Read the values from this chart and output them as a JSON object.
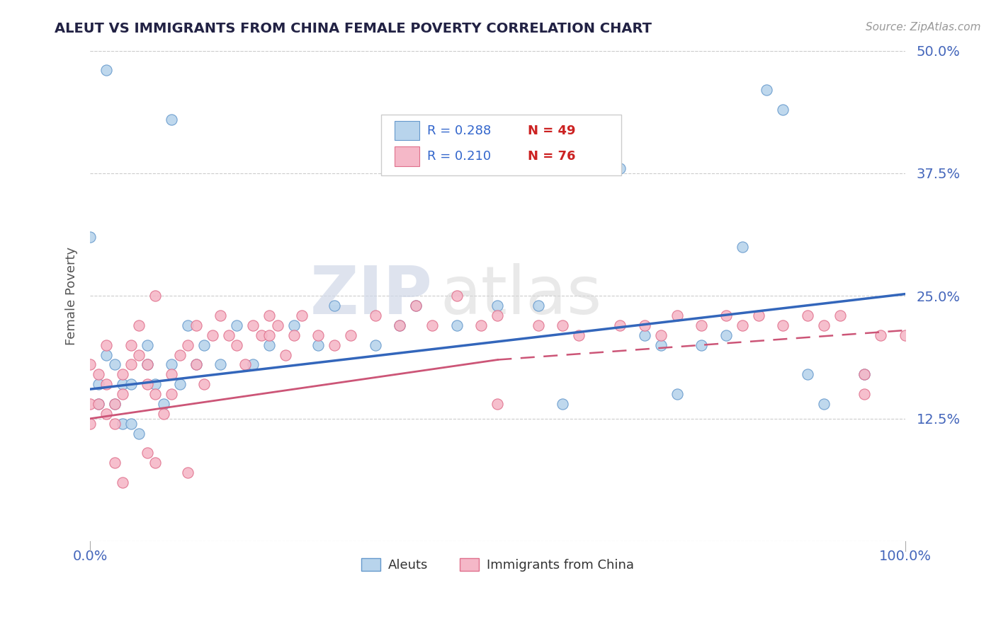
{
  "title": "ALEUT VS IMMIGRANTS FROM CHINA FEMALE POVERTY CORRELATION CHART",
  "source_text": "Source: ZipAtlas.com",
  "ylabel": "Female Poverty",
  "xmin": 0.0,
  "xmax": 1.0,
  "ymin": 0.0,
  "ymax": 0.5,
  "yticks": [
    0.0,
    0.125,
    0.25,
    0.375,
    0.5
  ],
  "ytick_labels": [
    "",
    "12.5%",
    "25.0%",
    "37.5%",
    "50.0%"
  ],
  "background_color": "#ffffff",
  "grid_color": "#cccccc",
  "watermark_zip": "ZIP",
  "watermark_atlas": "atlas",
  "series1_name": "Aleuts",
  "series1_color": "#b8d4ec",
  "series1_edge_color": "#6699cc",
  "series1_line_color": "#3366bb",
  "series2_name": "Immigrants from China",
  "series2_color": "#f5b8c8",
  "series2_edge_color": "#e0708c",
  "series2_line_color": "#cc5577",
  "legend_R_color": "#3366cc",
  "legend_N_color": "#cc2222",
  "aleuts_x": [
    0.02,
    0.1,
    0.0,
    0.01,
    0.01,
    0.02,
    0.03,
    0.03,
    0.04,
    0.04,
    0.05,
    0.05,
    0.06,
    0.07,
    0.07,
    0.08,
    0.09,
    0.1,
    0.11,
    0.12,
    0.13,
    0.14,
    0.16,
    0.18,
    0.2,
    0.22,
    0.25,
    0.28,
    0.3,
    0.35,
    0.38,
    0.4,
    0.45,
    0.5,
    0.55,
    0.58,
    0.6,
    0.65,
    0.68,
    0.7,
    0.72,
    0.75,
    0.78,
    0.8,
    0.83,
    0.85,
    0.88,
    0.9,
    0.95
  ],
  "aleuts_y": [
    0.48,
    0.43,
    0.31,
    0.16,
    0.14,
    0.19,
    0.18,
    0.14,
    0.16,
    0.12,
    0.16,
    0.12,
    0.11,
    0.2,
    0.18,
    0.16,
    0.14,
    0.18,
    0.16,
    0.22,
    0.18,
    0.2,
    0.18,
    0.22,
    0.18,
    0.2,
    0.22,
    0.2,
    0.24,
    0.2,
    0.22,
    0.24,
    0.22,
    0.24,
    0.24,
    0.14,
    0.4,
    0.38,
    0.21,
    0.2,
    0.15,
    0.2,
    0.21,
    0.3,
    0.46,
    0.44,
    0.17,
    0.14,
    0.17
  ],
  "china_x": [
    0.0,
    0.0,
    0.0,
    0.01,
    0.01,
    0.02,
    0.02,
    0.02,
    0.03,
    0.03,
    0.04,
    0.04,
    0.05,
    0.05,
    0.06,
    0.06,
    0.07,
    0.07,
    0.08,
    0.09,
    0.1,
    0.1,
    0.11,
    0.12,
    0.13,
    0.14,
    0.15,
    0.16,
    0.17,
    0.18,
    0.19,
    0.2,
    0.21,
    0.22,
    0.23,
    0.24,
    0.25,
    0.26,
    0.28,
    0.3,
    0.32,
    0.35,
    0.38,
    0.4,
    0.42,
    0.45,
    0.48,
    0.5,
    0.5,
    0.55,
    0.58,
    0.6,
    0.65,
    0.68,
    0.7,
    0.72,
    0.75,
    0.78,
    0.8,
    0.82,
    0.85,
    0.88,
    0.9,
    0.92,
    0.95,
    0.95,
    0.97,
    1.0,
    0.03,
    0.04,
    0.07,
    0.08,
    0.12,
    0.08,
    0.13,
    0.22
  ],
  "china_y": [
    0.14,
    0.12,
    0.18,
    0.17,
    0.14,
    0.2,
    0.16,
    0.13,
    0.14,
    0.12,
    0.17,
    0.15,
    0.2,
    0.18,
    0.22,
    0.19,
    0.18,
    0.16,
    0.15,
    0.13,
    0.17,
    0.15,
    0.19,
    0.2,
    0.18,
    0.16,
    0.21,
    0.23,
    0.21,
    0.2,
    0.18,
    0.22,
    0.21,
    0.23,
    0.22,
    0.19,
    0.21,
    0.23,
    0.21,
    0.2,
    0.21,
    0.23,
    0.22,
    0.24,
    0.22,
    0.25,
    0.22,
    0.23,
    0.14,
    0.22,
    0.22,
    0.21,
    0.22,
    0.22,
    0.21,
    0.23,
    0.22,
    0.23,
    0.22,
    0.23,
    0.22,
    0.23,
    0.22,
    0.23,
    0.17,
    0.15,
    0.21,
    0.21,
    0.08,
    0.06,
    0.09,
    0.08,
    0.07,
    0.25,
    0.22,
    0.21
  ]
}
